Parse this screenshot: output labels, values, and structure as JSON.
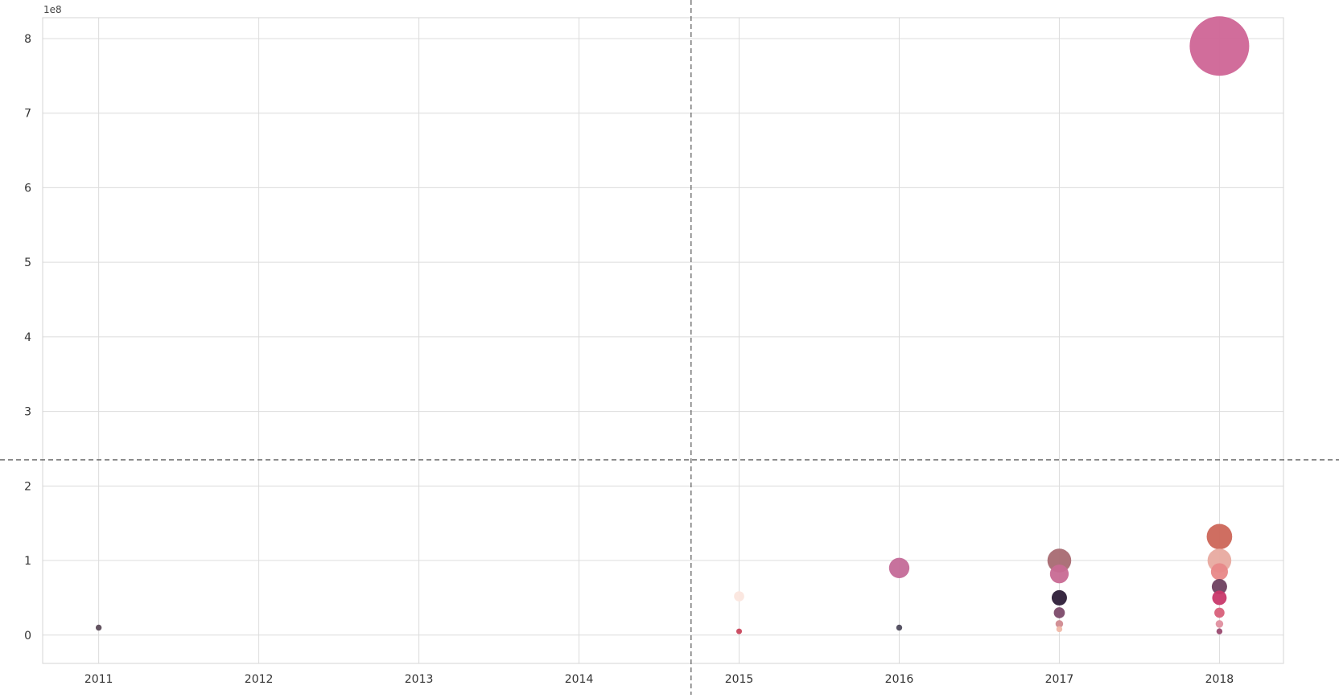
{
  "chart_data": {
    "type": "scatter",
    "title": "",
    "xlabel": "",
    "ylabel": "",
    "y_offset_label": "1e8",
    "x_ticks": [
      2011,
      2012,
      2013,
      2014,
      2015,
      2016,
      2017,
      2018
    ],
    "y_ticks": [
      0,
      1,
      2,
      3,
      4,
      5,
      6,
      7,
      8
    ],
    "xlim": [
      2010.65,
      2018.4
    ],
    "ylim": [
      -0.38,
      8.28
    ],
    "grid": true,
    "legend": "none",
    "crosshair": {
      "x": 2014.7,
      "y": 2.35
    },
    "points": [
      {
        "x": 2011,
        "y": 0.1,
        "size": 0.07,
        "color": "#5b4b58"
      },
      {
        "x": 2015,
        "y": 0.05,
        "size": 0.05,
        "color": "#c8465c"
      },
      {
        "x": 2015,
        "y": 0.52,
        "size": 0.12,
        "color": "#fbe6de"
      },
      {
        "x": 2016,
        "y": 0.1,
        "size": 0.07,
        "color": "#4e4a5c"
      },
      {
        "x": 2016,
        "y": 0.9,
        "size": 0.24,
        "color": "#c46a98"
      },
      {
        "x": 2017,
        "y": 1.0,
        "size": 0.28,
        "color": "#a86a72"
      },
      {
        "x": 2017,
        "y": 0.82,
        "size": 0.22,
        "color": "#c86a94"
      },
      {
        "x": 2017,
        "y": 0.5,
        "size": 0.18,
        "color": "#2d1e38"
      },
      {
        "x": 2017,
        "y": 0.3,
        "size": 0.13,
        "color": "#7c4a6a"
      },
      {
        "x": 2017,
        "y": 0.15,
        "size": 0.09,
        "color": "#d08a90"
      },
      {
        "x": 2017,
        "y": 0.08,
        "size": 0.07,
        "color": "#f0b8a8"
      },
      {
        "x": 2018,
        "y": 7.9,
        "size": 0.7,
        "color": "#cf6596"
      },
      {
        "x": 2018,
        "y": 1.32,
        "size": 0.3,
        "color": "#cc6658"
      },
      {
        "x": 2018,
        "y": 1.0,
        "size": 0.28,
        "color": "#e8aaa0"
      },
      {
        "x": 2018,
        "y": 0.85,
        "size": 0.2,
        "color": "#e88888"
      },
      {
        "x": 2018,
        "y": 0.65,
        "size": 0.18,
        "color": "#6e4060"
      },
      {
        "x": 2018,
        "y": 0.5,
        "size": 0.17,
        "color": "#c8386a"
      },
      {
        "x": 2018,
        "y": 0.3,
        "size": 0.12,
        "color": "#d8607a"
      },
      {
        "x": 2018,
        "y": 0.15,
        "size": 0.09,
        "color": "#e090a0"
      },
      {
        "x": 2018,
        "y": 0.05,
        "size": 0.07,
        "color": "#9a4a70"
      }
    ]
  }
}
